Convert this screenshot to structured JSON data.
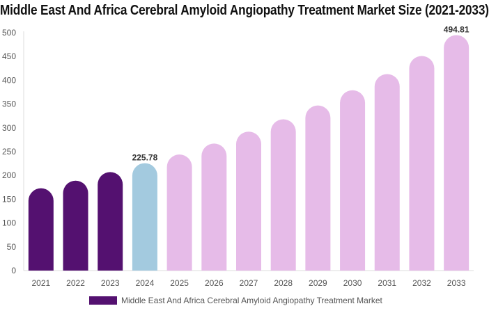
{
  "chart_data": {
    "type": "bar",
    "title": "Middle East And Africa Cerebral Amyloid Angiopathy Treatment Market Size (2021-2033)",
    "categories": [
      "2021",
      "2022",
      "2023",
      "2024",
      "2025",
      "2026",
      "2027",
      "2028",
      "2029",
      "2030",
      "2031",
      "2032",
      "2033"
    ],
    "series": [
      {
        "name": "Middle East And Africa Cerebral Amyloid Angiopathy Treatment Market",
        "values": [
          173,
          189,
          207,
          225.78,
          244,
          267,
          292,
          318,
          347,
          379,
          413,
          451,
          494.81
        ]
      }
    ],
    "data_labels": {
      "3": "225.78",
      "12": "494.81"
    },
    "ylim": [
      0,
      500
    ],
    "yticks": [
      0,
      50,
      100,
      150,
      200,
      250,
      300,
      350,
      400,
      450,
      500
    ],
    "grid": false,
    "legend_position": "bottom",
    "colors": {
      "historical": "#541170",
      "base_year": "#a3cadf",
      "forecast": "#e6bbe8"
    }
  }
}
